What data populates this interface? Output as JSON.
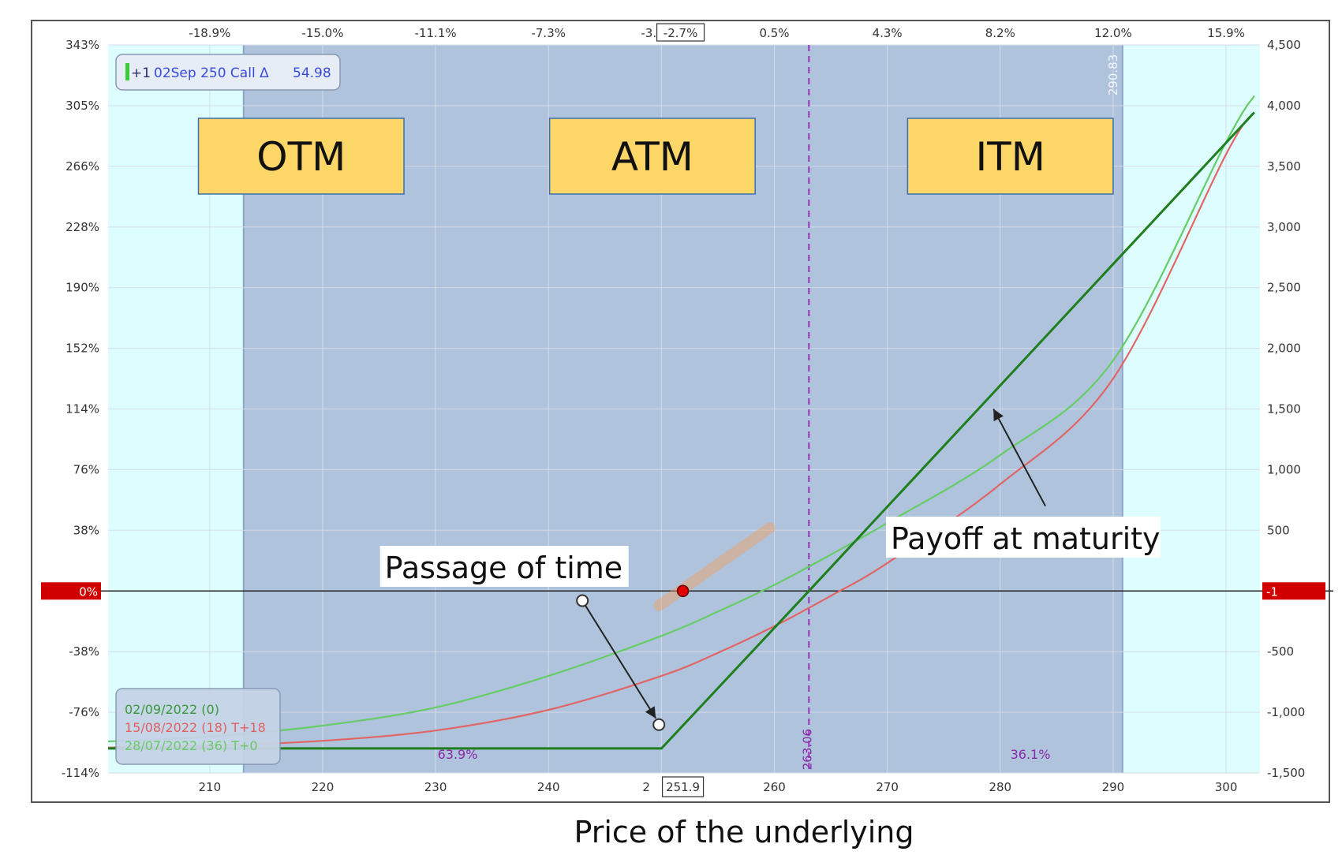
{
  "chart_data": {
    "type": "line",
    "title": "",
    "xlabel": "Price of the underlying",
    "xlim": [
      201,
      303
    ],
    "ylim_left": [
      -114,
      343
    ],
    "ylim_right": [
      -1500,
      4500
    ],
    "grid": true,
    "x_ticks": [
      "210",
      "220",
      "230",
      "240",
      "250",
      "260",
      "270",
      "280",
      "290",
      "300"
    ],
    "x_tick_values": [
      210,
      220,
      230,
      240,
      250,
      260,
      270,
      280,
      290,
      300
    ],
    "top_ticks": [
      "-18.9%",
      "-15.0%",
      "-11.1%",
      "-7.3%",
      "-3.",
      "0.5%",
      "4.3%",
      "8.2%",
      "12.0%",
      "15.9%"
    ],
    "top_tick_values": [
      210,
      220,
      230,
      240,
      250,
      260,
      270,
      280,
      290,
      300
    ],
    "y_left_ticks": [
      "343%",
      "305%",
      "266%",
      "228%",
      "190%",
      "152%",
      "114%",
      "76%",
      "38%",
      "0%",
      "-38%",
      "-76%",
      "-114%"
    ],
    "y_right_ticks": [
      "4,500",
      "4,000",
      "3,500",
      "3,000",
      "2,500",
      "2,000",
      "1,500",
      "1,000",
      "500",
      "",
      "-500",
      "-1,000",
      "-1,500"
    ],
    "y_right_tick_values": [
      4500,
      4000,
      3500,
      3000,
      2500,
      2000,
      1500,
      1000,
      500,
      0,
      -500,
      -1000,
      -1500
    ],
    "zero_left_label": "0%",
    "zero_right_label": "-1",
    "current_price_label": "251.9",
    "current_price": 251.9,
    "top_current_label": "-2.7%",
    "breakeven": 263.06,
    "breakeven_label": "263.06",
    "upper_bound": 290.83,
    "upper_bound_label": "290.83",
    "lower_bound": 213,
    "probability_left": "63.9%",
    "probability_right": "36.1%",
    "position_label": {
      "prefix": "+1",
      "text": "02Sep 250 Call Δ",
      "value": "54.98"
    },
    "zones": [
      {
        "label": "OTM",
        "x_from": 209,
        "x_to": 227.2
      },
      {
        "label": "ATM",
        "x_from": 240.1,
        "x_to": 258.3
      },
      {
        "label": "ITM",
        "x_from": 271.8,
        "x_to": 290
      }
    ],
    "annotations": [
      {
        "text": "Payoff at maturity",
        "x": 270.3,
        "y_value": 260
      },
      {
        "text": "Passage of time",
        "x": 225.5,
        "y_value": -110
      }
    ],
    "legend": [
      {
        "text": "02/09/2022 (0)",
        "color": "#3a9a3a"
      },
      {
        "text": "15/08/2022 (18) T+18",
        "color": "#e06060"
      },
      {
        "text": "28/07/2022 (36) T+0",
        "color": "#66cc66"
      }
    ],
    "series": [
      {
        "name": "02/09/2022 (0)",
        "color": "#1f7f1f",
        "x": [
          201,
          250,
          263.06,
          270,
          280,
          290,
          300,
          302.5
        ],
        "y": [
          -1298,
          -1298,
          0,
          694,
          1694,
          2694,
          3694,
          3944
        ]
      },
      {
        "name": "15/08/2022 (18) T+18",
        "color": "#e06666",
        "x": [
          201,
          210,
          220,
          230,
          240,
          250,
          255,
          260,
          265,
          270,
          280,
          290,
          300,
          302.5
        ],
        "y": [
          -1290,
          -1275,
          -1235,
          -1150,
          -980,
          -700,
          -510,
          -290,
          -40,
          230,
          880,
          1750,
          3600,
          3944
        ]
      },
      {
        "name": "28/07/2022 (36) T+0",
        "color": "#66cc66",
        "x": [
          201,
          210,
          220,
          230,
          240,
          250,
          255,
          260,
          265,
          270,
          280,
          290,
          300,
          302.5
        ],
        "y": [
          -1240,
          -1200,
          -1110,
          -960,
          -700,
          -370,
          -170,
          50,
          300,
          560,
          1120,
          1900,
          3700,
          4080
        ]
      }
    ],
    "marker": {
      "x": 251.9,
      "y": 0,
      "color": "#e00000"
    },
    "arrow_time": {
      "from": [
        243,
        -80
      ],
      "to": [
        249.5,
        -1050
      ]
    },
    "arrow_payoff": {
      "from": [
        284,
        700
      ],
      "to": [
        279.4,
        1500
      ]
    }
  }
}
